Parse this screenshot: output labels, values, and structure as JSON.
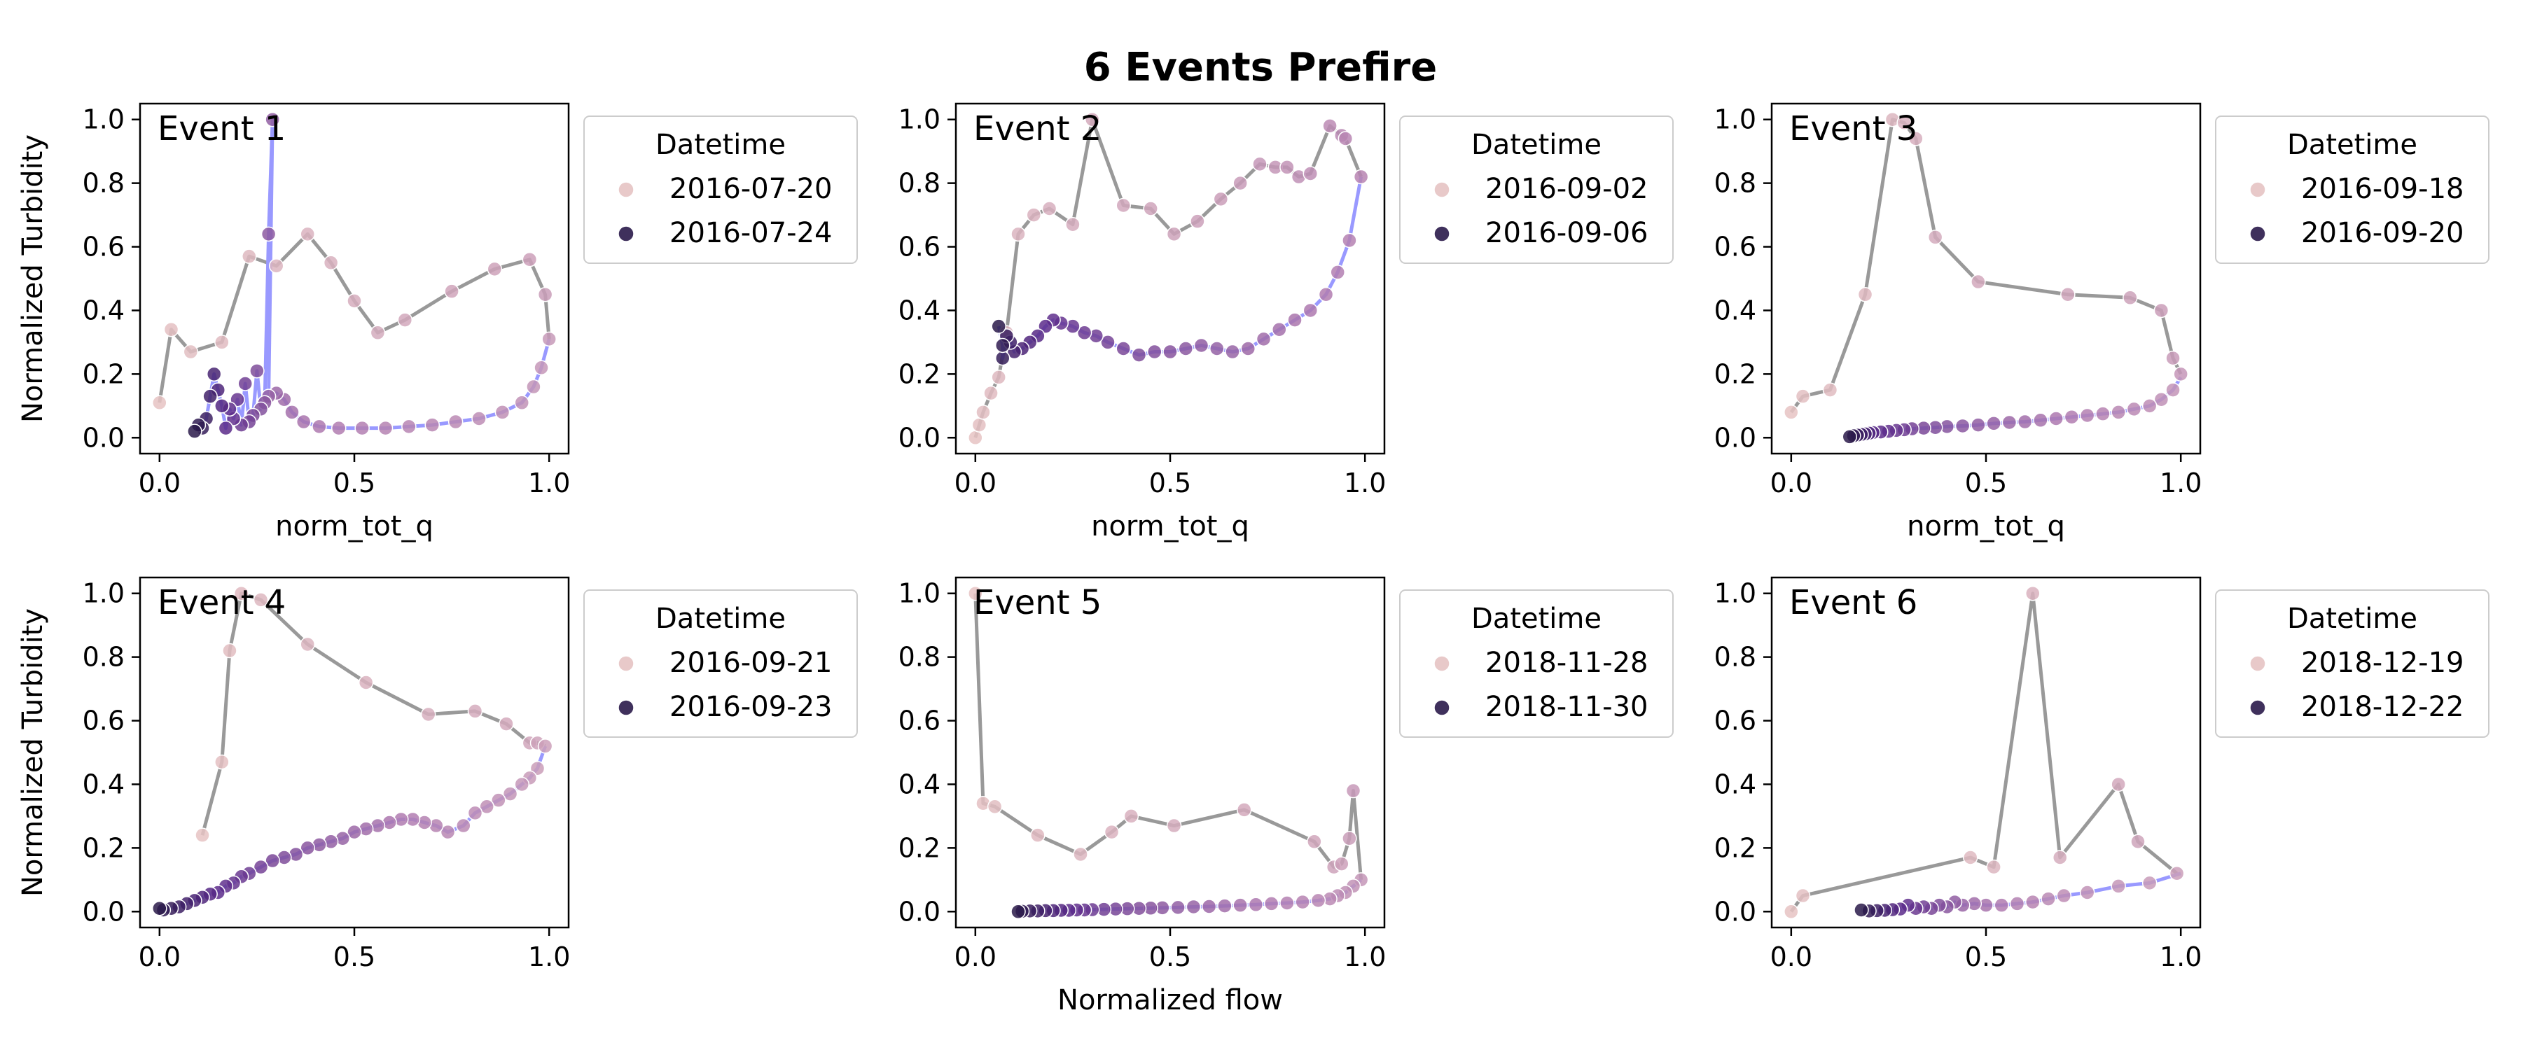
{
  "figure": {
    "title": "6 Events Prefire"
  },
  "chart_data": [
    {
      "type": "scatter",
      "label": "Event 1",
      "xlabel": "norm_tot_q",
      "ylabel": "Normalized Turbidity",
      "xlim": [
        0,
        1
      ],
      "ylim": [
        0,
        1
      ],
      "xticks": [
        "0.0",
        "0.5",
        "1.0"
      ],
      "yticks": [
        "0.0",
        "0.2",
        "0.4",
        "0.6",
        "0.8",
        "1.0"
      ],
      "legend": {
        "title": "Datetime",
        "position": "outside-right",
        "entries": [
          "2016-07-20",
          "2016-07-24"
        ]
      },
      "rising": {
        "x": [
          0.0,
          0.03,
          0.08,
          0.16,
          0.23,
          0.3,
          0.38,
          0.44,
          0.5,
          0.56,
          0.63,
          0.75,
          0.86,
          0.95,
          0.99,
          1.0
        ],
        "y": [
          0.11,
          0.34,
          0.27,
          0.3,
          0.57,
          0.54,
          0.64,
          0.55,
          0.43,
          0.33,
          0.37,
          0.46,
          0.53,
          0.56,
          0.45,
          0.31
        ]
      },
      "falling": {
        "x": [
          1.0,
          0.98,
          0.96,
          0.93,
          0.88,
          0.82,
          0.76,
          0.7,
          0.64,
          0.58,
          0.52,
          0.46,
          0.41,
          0.37,
          0.34,
          0.32,
          0.3,
          0.28,
          0.29,
          0.28,
          0.27,
          0.26,
          0.25,
          0.24,
          0.23,
          0.22,
          0.21,
          0.2,
          0.19,
          0.18,
          0.17,
          0.16,
          0.15,
          0.14,
          0.13,
          0.12,
          0.11,
          0.1,
          0.09
        ],
        "y": [
          0.31,
          0.22,
          0.16,
          0.11,
          0.08,
          0.06,
          0.05,
          0.04,
          0.035,
          0.03,
          0.03,
          0.03,
          0.035,
          0.05,
          0.08,
          0.12,
          0.14,
          0.13,
          1.0,
          0.64,
          0.11,
          0.09,
          0.21,
          0.07,
          0.05,
          0.17,
          0.04,
          0.12,
          0.06,
          0.09,
          0.03,
          0.1,
          0.15,
          0.2,
          0.13,
          0.06,
          0.03,
          0.04,
          0.02
        ]
      }
    },
    {
      "type": "scatter",
      "label": "Event 2",
      "xlabel": "norm_tot_q",
      "ylabel": "",
      "xlim": [
        0,
        1
      ],
      "ylim": [
        0,
        1
      ],
      "xticks": [
        "0.0",
        "0.5",
        "1.0"
      ],
      "yticks": [
        "0.0",
        "0.2",
        "0.4",
        "0.6",
        "0.8",
        "1.0"
      ],
      "legend": {
        "title": "Datetime",
        "position": "outside-right",
        "entries": [
          "2016-09-02",
          "2016-09-06"
        ]
      },
      "rising": {
        "x": [
          0.0,
          0.01,
          0.02,
          0.04,
          0.06,
          0.08,
          0.11,
          0.15,
          0.19,
          0.25,
          0.3,
          0.38,
          0.45,
          0.51,
          0.57,
          0.63,
          0.68,
          0.73,
          0.77,
          0.8,
          0.83,
          0.86,
          0.91,
          0.94,
          0.95,
          0.99
        ],
        "y": [
          0.0,
          0.04,
          0.08,
          0.14,
          0.19,
          0.33,
          0.64,
          0.7,
          0.72,
          0.67,
          1.0,
          0.73,
          0.72,
          0.64,
          0.68,
          0.75,
          0.8,
          0.86,
          0.85,
          0.85,
          0.82,
          0.83,
          0.98,
          0.95,
          0.94,
          0.82
        ]
      },
      "falling": {
        "x": [
          0.99,
          0.96,
          0.93,
          0.9,
          0.86,
          0.82,
          0.78,
          0.74,
          0.7,
          0.66,
          0.62,
          0.58,
          0.54,
          0.5,
          0.46,
          0.42,
          0.38,
          0.34,
          0.31,
          0.28,
          0.25,
          0.22,
          0.2,
          0.18,
          0.16,
          0.14,
          0.12,
          0.1,
          0.09,
          0.08,
          0.07,
          0.07,
          0.06
        ],
        "y": [
          0.82,
          0.62,
          0.52,
          0.45,
          0.4,
          0.37,
          0.34,
          0.31,
          0.28,
          0.27,
          0.28,
          0.29,
          0.28,
          0.27,
          0.27,
          0.26,
          0.28,
          0.3,
          0.32,
          0.33,
          0.35,
          0.36,
          0.37,
          0.35,
          0.32,
          0.3,
          0.28,
          0.27,
          0.3,
          0.32,
          0.25,
          0.29,
          0.35
        ]
      }
    },
    {
      "type": "scatter",
      "label": "Event 3",
      "xlabel": "norm_tot_q",
      "ylabel": "",
      "xlim": [
        0,
        1
      ],
      "ylim": [
        0,
        1
      ],
      "xticks": [
        "0.0",
        "0.5",
        "1.0"
      ],
      "yticks": [
        "0.0",
        "0.2",
        "0.4",
        "0.6",
        "0.8",
        "1.0"
      ],
      "legend": {
        "title": "Datetime",
        "position": "outside-right",
        "entries": [
          "2016-09-18",
          "2016-09-20"
        ]
      },
      "rising": {
        "x": [
          0.0,
          0.03,
          0.1,
          0.19,
          0.26,
          0.29,
          0.32,
          0.37,
          0.48,
          0.71,
          0.87,
          0.95,
          0.98,
          1.0
        ],
        "y": [
          0.08,
          0.13,
          0.15,
          0.45,
          1.0,
          0.99,
          0.94,
          0.63,
          0.49,
          0.45,
          0.44,
          0.4,
          0.25,
          0.2
        ]
      },
      "falling": {
        "x": [
          1.0,
          0.98,
          0.95,
          0.92,
          0.88,
          0.84,
          0.8,
          0.76,
          0.72,
          0.68,
          0.64,
          0.6,
          0.56,
          0.52,
          0.48,
          0.44,
          0.4,
          0.37,
          0.34,
          0.31,
          0.29,
          0.27,
          0.25,
          0.23,
          0.21,
          0.2,
          0.19,
          0.18,
          0.17,
          0.16,
          0.15
        ],
        "y": [
          0.19,
          0.15,
          0.12,
          0.1,
          0.09,
          0.08,
          0.075,
          0.07,
          0.065,
          0.06,
          0.055,
          0.05,
          0.048,
          0.045,
          0.04,
          0.037,
          0.035,
          0.032,
          0.03,
          0.028,
          0.025,
          0.023,
          0.02,
          0.018,
          0.016,
          0.014,
          0.012,
          0.01,
          0.008,
          0.006,
          0.003
        ]
      }
    },
    {
      "type": "scatter",
      "label": "Event 4",
      "xlabel": "",
      "ylabel": "Normalized Turbidity",
      "xlim": [
        0,
        1
      ],
      "ylim": [
        0,
        1
      ],
      "xticks": [
        "0.0",
        "0.5",
        "1.0"
      ],
      "yticks": [
        "0.0",
        "0.2",
        "0.4",
        "0.6",
        "0.8",
        "1.0"
      ],
      "legend": {
        "title": "Datetime",
        "position": "outside-right",
        "entries": [
          "2016-09-21",
          "2016-09-23"
        ]
      },
      "rising": {
        "x": [
          0.11,
          0.16,
          0.18,
          0.21,
          0.26,
          0.38,
          0.53,
          0.69,
          0.81,
          0.89,
          0.95,
          0.97,
          0.99
        ],
        "y": [
          0.24,
          0.47,
          0.82,
          1.0,
          0.98,
          0.84,
          0.72,
          0.62,
          0.63,
          0.59,
          0.53,
          0.53,
          0.52
        ]
      },
      "falling": {
        "x": [
          0.99,
          0.97,
          0.95,
          0.93,
          0.9,
          0.87,
          0.84,
          0.81,
          0.78,
          0.74,
          0.71,
          0.68,
          0.65,
          0.62,
          0.59,
          0.56,
          0.53,
          0.5,
          0.47,
          0.44,
          0.41,
          0.38,
          0.35,
          0.32,
          0.29,
          0.26,
          0.23,
          0.21,
          0.19,
          0.17,
          0.15,
          0.13,
          0.11,
          0.09,
          0.07,
          0.05,
          0.03,
          0.01,
          0.0
        ],
        "y": [
          0.52,
          0.45,
          0.42,
          0.4,
          0.37,
          0.35,
          0.33,
          0.31,
          0.27,
          0.25,
          0.27,
          0.28,
          0.29,
          0.29,
          0.28,
          0.27,
          0.26,
          0.25,
          0.23,
          0.22,
          0.21,
          0.2,
          0.18,
          0.17,
          0.16,
          0.14,
          0.12,
          0.11,
          0.09,
          0.08,
          0.06,
          0.055,
          0.045,
          0.035,
          0.025,
          0.015,
          0.01,
          0.005,
          0.01
        ]
      }
    },
    {
      "type": "scatter",
      "label": "Event 5",
      "xlabel": "Normalized flow",
      "ylabel": "",
      "xlim": [
        0,
        1
      ],
      "ylim": [
        0,
        1
      ],
      "xticks": [
        "0.0",
        "0.5",
        "1.0"
      ],
      "yticks": [
        "0.0",
        "0.2",
        "0.4",
        "0.6",
        "0.8",
        "1.0"
      ],
      "legend": {
        "title": "Datetime",
        "position": "outside-right",
        "entries": [
          "2018-11-28",
          "2018-11-30"
        ]
      },
      "rising": {
        "x": [
          0.0,
          0.02,
          0.05,
          0.16,
          0.27,
          0.35,
          0.4,
          0.51,
          0.69,
          0.87,
          0.92,
          0.94,
          0.96,
          0.97,
          0.99
        ],
        "y": [
          1.0,
          0.34,
          0.33,
          0.24,
          0.18,
          0.25,
          0.3,
          0.27,
          0.32,
          0.22,
          0.14,
          0.15,
          0.23,
          0.38,
          0.1
        ]
      },
      "falling": {
        "x": [
          0.99,
          0.97,
          0.95,
          0.93,
          0.91,
          0.88,
          0.84,
          0.8,
          0.76,
          0.72,
          0.68,
          0.64,
          0.6,
          0.56,
          0.52,
          0.48,
          0.45,
          0.42,
          0.39,
          0.36,
          0.33,
          0.3,
          0.28,
          0.26,
          0.24,
          0.22,
          0.2,
          0.18,
          0.16,
          0.14,
          0.12,
          0.11
        ],
        "y": [
          0.1,
          0.08,
          0.06,
          0.05,
          0.04,
          0.035,
          0.03,
          0.027,
          0.025,
          0.022,
          0.02,
          0.018,
          0.016,
          0.015,
          0.013,
          0.012,
          0.011,
          0.01,
          0.009,
          0.008,
          0.007,
          0.006,
          0.005,
          0.005,
          0.004,
          0.004,
          0.003,
          0.003,
          0.002,
          0.002,
          0.001,
          0.0
        ]
      }
    },
    {
      "type": "scatter",
      "label": "Event 6",
      "xlabel": "",
      "ylabel": "",
      "xlim": [
        0,
        1
      ],
      "ylim": [
        0,
        1
      ],
      "xticks": [
        "0.0",
        "0.5",
        "1.0"
      ],
      "yticks": [
        "0.0",
        "0.2",
        "0.4",
        "0.6",
        "0.8",
        "1.0"
      ],
      "legend": {
        "title": "Datetime",
        "position": "outside-right",
        "entries": [
          "2018-12-19",
          "2018-12-22"
        ]
      },
      "rising": {
        "x": [
          0.0,
          0.03,
          0.46,
          0.52,
          0.62,
          0.69,
          0.84,
          0.89,
          0.99
        ],
        "y": [
          0.0,
          0.05,
          0.17,
          0.14,
          1.0,
          0.17,
          0.4,
          0.22,
          0.12
        ]
      },
      "falling": {
        "x": [
          1.0,
          0.92,
          0.84,
          0.76,
          0.7,
          0.66,
          0.62,
          0.58,
          0.54,
          0.5,
          0.47,
          0.44,
          0.42,
          0.4,
          0.38,
          0.36,
          0.34,
          0.32,
          0.3,
          0.28,
          0.26,
          0.24,
          0.22,
          0.2,
          0.18
        ],
        "y": [
          0.12,
          0.09,
          0.08,
          0.06,
          0.05,
          0.04,
          0.03,
          0.025,
          0.02,
          0.02,
          0.025,
          0.02,
          0.03,
          0.015,
          0.02,
          0.01,
          0.015,
          0.01,
          0.02,
          0.008,
          0.006,
          0.004,
          0.003,
          0.002,
          0.005
        ]
      }
    }
  ],
  "style": {
    "rising_line": "#999999",
    "falling_line": "#9999ff",
    "rising_point": "#e6c3c3",
    "mid_point": "#b07bb0",
    "dark_point": "#2a1a4a",
    "deep_point": "#5a2a8a"
  }
}
